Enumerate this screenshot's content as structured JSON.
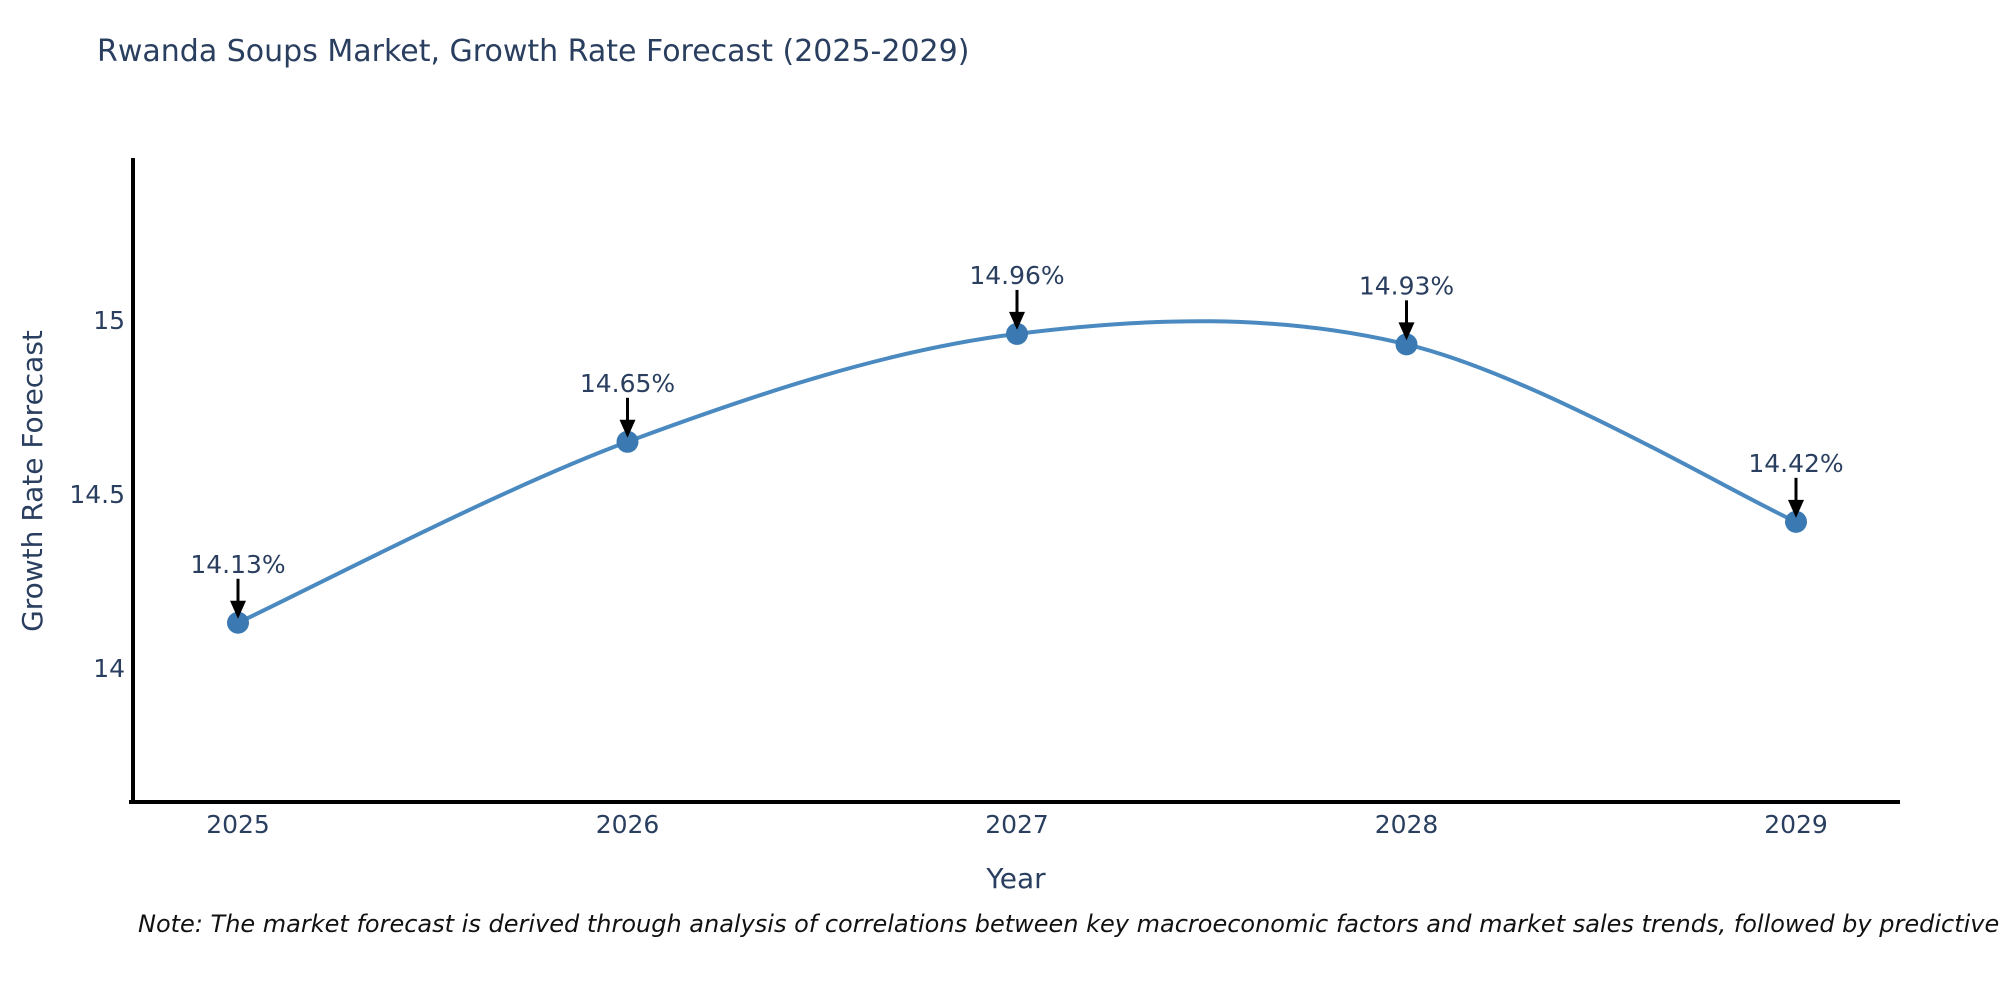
{
  "title": "Rwanda Soups Market, Growth Rate Forecast (2025-2029)",
  "note": "Note: The market forecast is derived through analysis of correlations between key macroeconomic factors and market sales trends, followed by predictive modeling to project future sales.",
  "chart_data": {
    "type": "line",
    "title": "Rwanda Soups Market, Growth Rate Forecast (2025-2029)",
    "xlabel": "Year",
    "ylabel": "Growth Rate Forecast",
    "categories": [
      "2025",
      "2026",
      "2027",
      "2028",
      "2029"
    ],
    "values": [
      14.13,
      14.65,
      14.96,
      14.93,
      14.42
    ],
    "point_labels": [
      "14.13%",
      "14.65%",
      "14.96%",
      "14.93%",
      "14.42%"
    ],
    "yticks": [
      {
        "value": 14,
        "label": "14"
      },
      {
        "value": 14.5,
        "label": "14.5"
      },
      {
        "value": 15,
        "label": "15"
      }
    ],
    "ylim": [
      13.62,
      15.47
    ],
    "line_shape": "spline",
    "grid": false,
    "legend": "none",
    "annotation_style": "value label above point with black down-arrow",
    "colors": {
      "line": "#4a8ac0",
      "marker": "#3b79b2",
      "arrow": "#000000",
      "axis_line": "#000000",
      "text": "#2a3f5f"
    }
  }
}
